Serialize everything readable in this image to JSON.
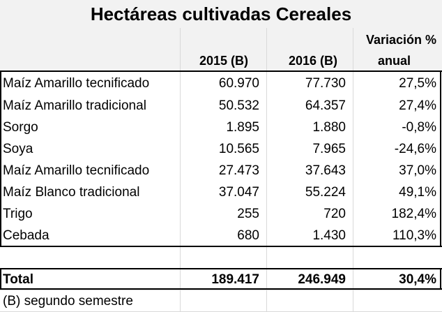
{
  "title": "Hectáreas cultivadas Cereales",
  "headers": {
    "col_2015": "2015 (B)",
    "col_2016": "2016 (B)",
    "variacion_line1": "Variación %",
    "variacion_line2": "anual"
  },
  "rows": [
    {
      "name": "Maíz Amarillo tecnificado",
      "v2015": "60.970",
      "v2016": "77.730",
      "var": "27,5%"
    },
    {
      "name": "Maíz Amarillo tradicional",
      "v2015": "50.532",
      "v2016": "64.357",
      "var": "27,4%"
    },
    {
      "name": "Sorgo",
      "v2015": "1.895",
      "v2016": "1.880",
      "var": "-0,8%"
    },
    {
      "name": "Soya",
      "v2015": "10.565",
      "v2016": "7.965",
      "var": "-24,6%"
    },
    {
      "name": "Maíz Amarillo tecnificado",
      "v2015": "27.473",
      "v2016": "37.643",
      "var": "37,0%"
    },
    {
      "name": "Maíz Blanco tradicional",
      "v2015": "37.047",
      "v2016": "55.224",
      "var": "49,1%"
    },
    {
      "name": "Trigo",
      "v2015": "255",
      "v2016": "720",
      "var": "182,4%"
    },
    {
      "name": "Cebada",
      "v2015": "680",
      "v2016": "1.430",
      "var": "110,3%"
    }
  ],
  "total": {
    "label": "Total",
    "v2015": "189.417",
    "v2016": "246.949",
    "var": "30,4%"
  },
  "footnote": "(B) segundo semestre"
}
